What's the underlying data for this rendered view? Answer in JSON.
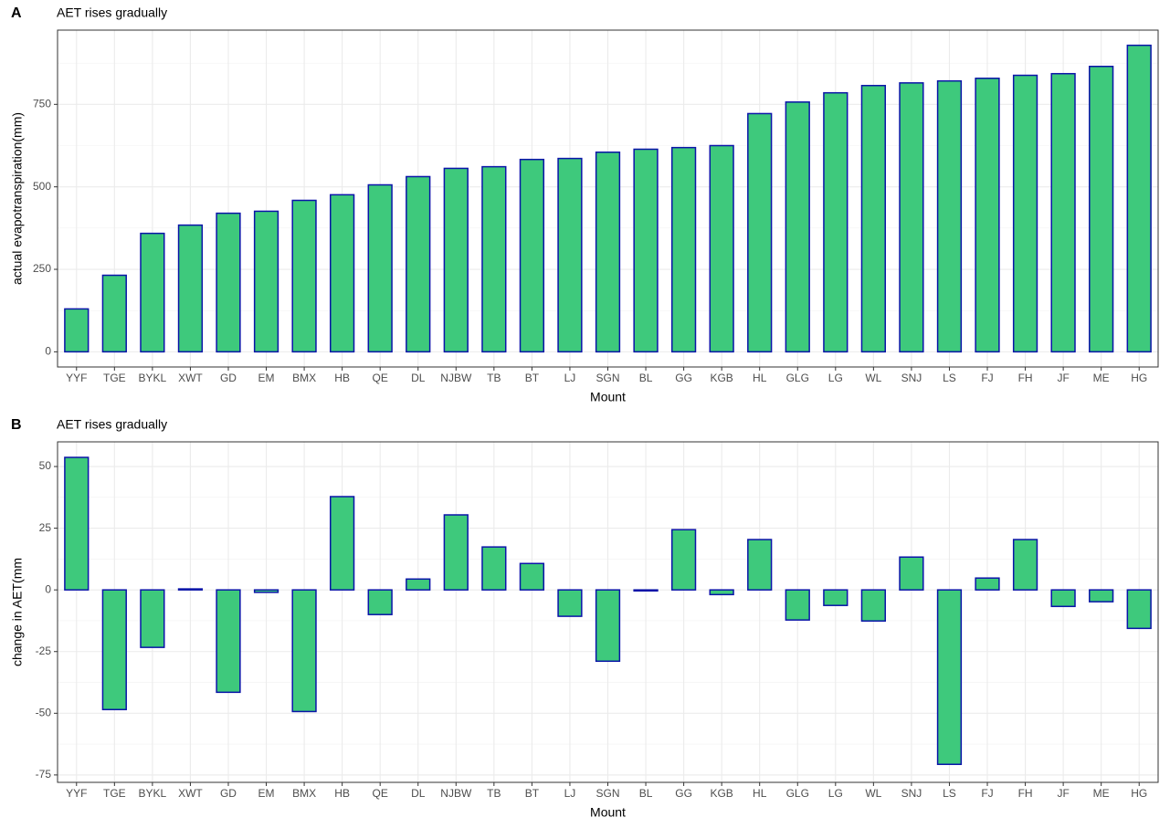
{
  "chart_data": [
    {
      "type": "bar",
      "tag": "A",
      "title": "AET rises gradually",
      "x_label": "Mount",
      "y_label": "actual evapotranspiration(mm)",
      "categories": [
        "YYF",
        "TGE",
        "BYKL",
        "XWT",
        "GD",
        "EM",
        "BMX",
        "HB",
        "QE",
        "DL",
        "NJBW",
        "TB",
        "BT",
        "LJ",
        "SGN",
        "BL",
        "GG",
        "KGB",
        "HL",
        "GLG",
        "LG",
        "WL",
        "SNJ",
        "LS",
        "FJ",
        "FH",
        "JF",
        "ME",
        "HG"
      ],
      "values": [
        130,
        232,
        359,
        384,
        420,
        426,
        459,
        476,
        506,
        531,
        556,
        561,
        583,
        586,
        605,
        614,
        619,
        625,
        722,
        757,
        785,
        807,
        815,
        821,
        829,
        838,
        843,
        865,
        929
      ],
      "color": "#3ec97c",
      "edge_color": "#0a14a8",
      "ylim": [
        -46,
        975
      ],
      "yticks": [
        0,
        250,
        500,
        750
      ],
      "grid": true
    },
    {
      "type": "bar",
      "tag": "B",
      "title": "AET rises gradually",
      "x_label": "Mount",
      "y_label": "change in AET(mm",
      "categories": [
        "YYF",
        "TGE",
        "BYKL",
        "XWT",
        "GD",
        "EM",
        "BMX",
        "HB",
        "QE",
        "DL",
        "NJBW",
        "TB",
        "BT",
        "LJ",
        "SGN",
        "BL",
        "GG",
        "KGB",
        "HL",
        "GLG",
        "LG",
        "WL",
        "SNJ",
        "LS",
        "FJ",
        "FH",
        "JF",
        "ME",
        "HG"
      ],
      "values": [
        53.7,
        -48.5,
        -23.3,
        0.4,
        -41.5,
        -1,
        -49.3,
        37.8,
        -10,
        4.4,
        30.4,
        17.4,
        10.7,
        -10.7,
        -28.9,
        -0.4,
        24.4,
        -1.9,
        20.4,
        -12.2,
        -6.3,
        -12.6,
        13.3,
        -70.7,
        4.8,
        20.4,
        -6.7,
        -4.8,
        -15.6
      ],
      "color": "#3ec97c",
      "edge_color": "#0a14a8",
      "ylim": [
        -78,
        60
      ],
      "yticks": [
        -75,
        -50,
        -25,
        0,
        25,
        50
      ],
      "grid": true
    }
  ]
}
